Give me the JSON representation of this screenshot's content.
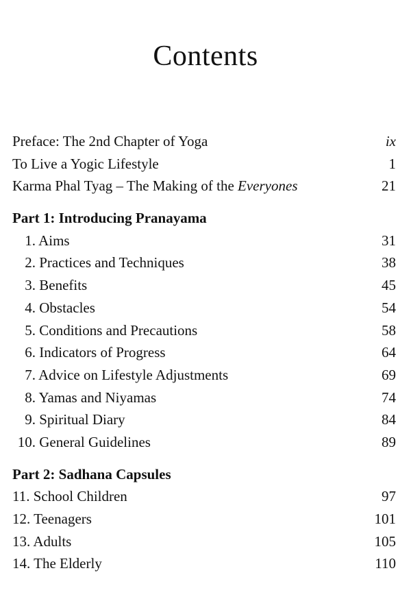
{
  "title": "Contents",
  "front": [
    {
      "text": "Preface: The 2nd Chapter of Yoga",
      "italic": "",
      "page": "ix"
    },
    {
      "text": "To Live a Yogic Lifestyle",
      "italic": "",
      "page": "1"
    },
    {
      "text": "Karma Phal Tyag – The Making of the ",
      "italic": "Everyones",
      "page": "21"
    }
  ],
  "parts": [
    {
      "heading": "Part 1: Introducing Pranayama",
      "chapters": [
        {
          "num": "1.",
          "title": "Aims",
          "page": "31"
        },
        {
          "num": "2.",
          "title": "Practices and Techniques",
          "page": "38"
        },
        {
          "num": "3.",
          "title": "Benefits",
          "page": "45"
        },
        {
          "num": "4.",
          "title": "Obstacles",
          "page": "54"
        },
        {
          "num": "5.",
          "title": "Conditions and Precautions",
          "page": "58"
        },
        {
          "num": "6.",
          "title": "Indicators of Progress",
          "page": "64"
        },
        {
          "num": "7.",
          "title": "Advice on Lifestyle Adjustments",
          "page": "69"
        },
        {
          "num": "8.",
          "title": "Yamas and Niyamas",
          "page": "74"
        },
        {
          "num": "9.",
          "title": "Spiritual Diary",
          "page": "84"
        },
        {
          "num": "10.",
          "title": "General Guidelines",
          "page": "89"
        }
      ]
    },
    {
      "heading": "Part 2: Sadhana Capsules",
      "chapters": [
        {
          "num": "11.",
          "title": "School Children",
          "page": "97"
        },
        {
          "num": "12.",
          "title": "Teenagers",
          "page": "101"
        },
        {
          "num": "13.",
          "title": "Adults",
          "page": "105"
        },
        {
          "num": "14.",
          "title": "The Elderly",
          "page": "110"
        }
      ]
    }
  ]
}
